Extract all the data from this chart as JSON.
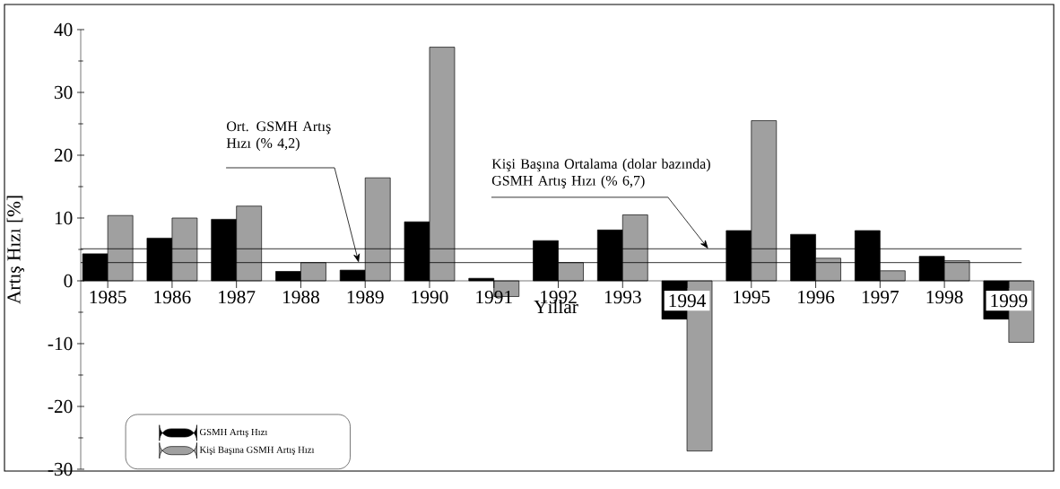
{
  "chart_data": {
    "type": "bar",
    "xlabel": "Yıllar",
    "ylabel": "Artış Hızı [%]",
    "categories": [
      "1985",
      "1986",
      "1987",
      "1988",
      "1989",
      "1990",
      "1991",
      "1992",
      "1993",
      "1994",
      "1995",
      "1996",
      "1997",
      "1998",
      "1999"
    ],
    "series": [
      {
        "name": "GSMH Artış Hızı",
        "color": "#000000",
        "values": [
          4.3,
          6.8,
          9.8,
          1.5,
          1.7,
          9.4,
          0.4,
          6.4,
          8.1,
          -6.1,
          8.0,
          7.4,
          8.0,
          3.9,
          -6.1
        ]
      },
      {
        "name": "Kişi Başına GSMH Artış Hızı",
        "color": "#a0a0a0",
        "values": [
          10.4,
          10.0,
          11.9,
          2.9,
          16.4,
          37.2,
          -2.5,
          2.9,
          10.5,
          -27.1,
          25.5,
          3.6,
          1.6,
          3.2,
          -9.8
        ]
      }
    ],
    "ylim": [
      -30,
      40
    ],
    "yticks": [
      -30,
      -20,
      -10,
      0,
      10,
      20,
      30,
      40
    ],
    "ref_lines": [
      {
        "axis": "y",
        "value": 2.9,
        "label": "Ort. GSMH Artış Hızı (% 4,2)"
      },
      {
        "axis": "y",
        "value": 5.1,
        "label": "Kişi Başına Ortalama  (dolar bazında) GSMH Artış Hızı (% 6,7)"
      }
    ],
    "legend": "bottom left",
    "grid": false
  }
}
